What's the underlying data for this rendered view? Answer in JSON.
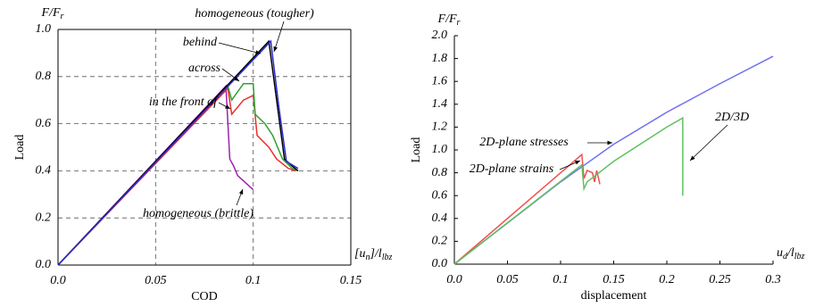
{
  "chart_data": [
    {
      "type": "line",
      "y_label": "Load",
      "x_label": "COD",
      "y_corner": "F/F",
      "y_corner_sub": "r",
      "x_corner": "[u",
      "x_corner_sub": "n",
      "x_corner_mid": "]/l",
      "x_corner_sub2": "lbz",
      "xlim": [
        0,
        0.15
      ],
      "xticks": [
        {
          "value": 0,
          "label": "0.0"
        },
        0.05,
        0.1,
        0.15
      ],
      "ylim": [
        0,
        1
      ],
      "yticks": [
        {
          "value": 0,
          "label": "0.0"
        },
        0.2,
        0.4,
        0.6,
        0.8,
        {
          "value": 1,
          "label": "1.0"
        }
      ],
      "grid": true,
      "series": [
        {
          "name": "homogeneous (brittle)",
          "color": "#a020b0",
          "x": [
            0,
            0.086,
            0.088,
            0.09,
            0.092,
            0.1
          ],
          "values": [
            0,
            0.76,
            0.45,
            0.42,
            0.38,
            0.32
          ]
        },
        {
          "name": "in the front of",
          "color": "#e83030",
          "x": [
            0,
            0.087,
            0.089,
            0.095,
            0.1,
            0.102,
            0.108,
            0.112,
            0.118,
            0.122
          ],
          "values": [
            0,
            0.75,
            0.64,
            0.7,
            0.72,
            0.55,
            0.5,
            0.45,
            0.41,
            0.4
          ]
        },
        {
          "name": "across",
          "color": "#30a030",
          "x": [
            0,
            0.087,
            0.089,
            0.095,
            0.1,
            0.101,
            0.106,
            0.11,
            0.115,
            0.12,
            0.123
          ],
          "values": [
            0,
            0.76,
            0.7,
            0.77,
            0.77,
            0.64,
            0.6,
            0.55,
            0.45,
            0.41,
            0.4
          ]
        },
        {
          "name": "behind",
          "color": "#000000",
          "x": [
            0,
            0.108,
            0.112,
            0.116,
            0.12,
            0.123
          ],
          "values": [
            0,
            0.95,
            0.7,
            0.45,
            0.42,
            0.4
          ]
        },
        {
          "name": "homogeneous (tougher)",
          "color": "#2a2ad0",
          "x": [
            0,
            0.109,
            0.113,
            0.117,
            0.123
          ],
          "values": [
            0,
            0.95,
            0.68,
            0.44,
            0.41
          ]
        }
      ]
    },
    {
      "type": "line",
      "y_label": "Load",
      "x_label": "displacement",
      "y_corner": "F/F",
      "y_corner_sub": "r",
      "x_corner": "u",
      "x_corner_sub": "d",
      "x_corner_mid": "/l",
      "x_corner_sub2": "lbz",
      "xlim": [
        0,
        0.3
      ],
      "xticks": [
        {
          "value": 0,
          "label": "0.0"
        },
        0.05,
        0.1,
        0.15,
        0.2,
        0.25,
        0.3
      ],
      "ylim": [
        0,
        2
      ],
      "yticks": [
        {
          "value": 0,
          "label": "0.0"
        },
        0.2,
        0.4,
        0.6,
        0.8,
        {
          "value": 1,
          "label": "1.0"
        },
        1.2,
        1.4,
        1.6,
        1.8,
        {
          "value": 2,
          "label": "2.0"
        }
      ],
      "grid": false,
      "series": [
        {
          "name": "2D-plane stresses",
          "color": "#7070f0",
          "x": [
            0,
            0.1,
            0.15,
            0.2,
            0.25,
            0.3
          ],
          "values": [
            0,
            0.72,
            1.05,
            1.33,
            1.58,
            1.82
          ]
        },
        {
          "name": "2D-plane strains",
          "color": "#f05050",
          "x": [
            0,
            0.12,
            0.122,
            0.125,
            0.13,
            0.132,
            0.134,
            0.137
          ],
          "values": [
            0,
            0.96,
            0.75,
            0.82,
            0.8,
            0.72,
            0.82,
            0.7
          ]
        },
        {
          "name": "2D/3D",
          "color": "#60c060",
          "x": [
            0,
            0.12,
            0.122,
            0.125,
            0.15,
            0.2,
            0.215,
            0.215
          ],
          "values": [
            0,
            0.87,
            0.66,
            0.72,
            0.9,
            1.2,
            1.28,
            0.6
          ]
        }
      ]
    }
  ]
}
